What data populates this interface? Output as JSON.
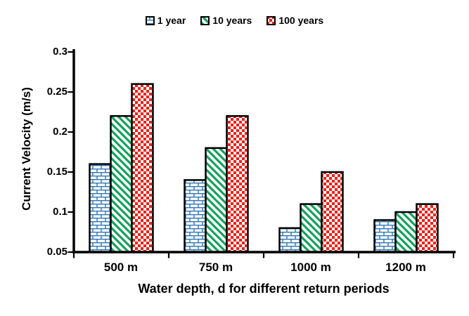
{
  "chart_data": {
    "type": "bar",
    "categories": [
      "500 m",
      "750 m",
      "1000 m",
      "1200 m"
    ],
    "series": [
      {
        "name": "1 year",
        "pattern": "brick",
        "color": "#2E75B6",
        "values": [
          0.16,
          0.14,
          0.08,
          0.09
        ]
      },
      {
        "name": "10 years",
        "pattern": "diagonal",
        "color": "#14A05A",
        "values": [
          0.22,
          0.18,
          0.11,
          0.1
        ]
      },
      {
        "name": "100 years",
        "pattern": "checker",
        "color": "#E8231A",
        "values": [
          0.26,
          0.22,
          0.15,
          0.11
        ]
      }
    ],
    "xlabel": "Water depth, d for different return periods",
    "ylabel": "Current Velocity (m/s)",
    "ylim": [
      0.05,
      0.3
    ],
    "ytick_step": 0.05,
    "yticks": [
      "0.3",
      "0.25",
      "0.2",
      "0.15",
      "0.1",
      "0.05"
    ],
    "grid": false,
    "legend_position": "top",
    "axis_color": "#000000",
    "background_color": "#FFFFFF"
  }
}
